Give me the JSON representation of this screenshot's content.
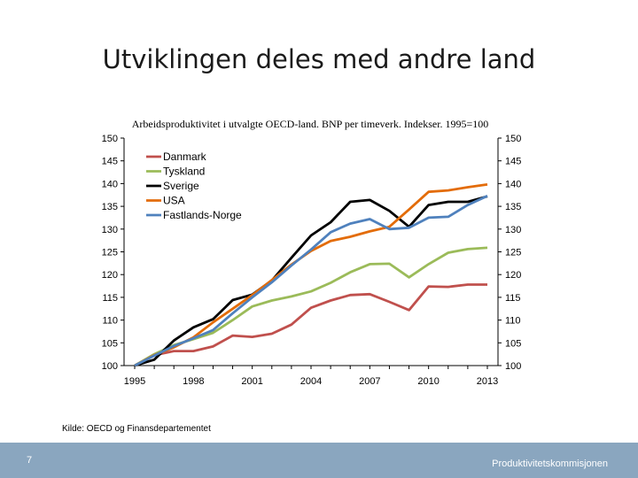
{
  "slide": {
    "title": "Utviklingen deles med andre land",
    "page_number": "7",
    "footer_brand": "Produktivitetskommisjonen"
  },
  "source_note": "Kilde: OECD og Finansdepartementet",
  "chart_data": {
    "type": "line",
    "title": "Arbeidsproduktivitet i utvalgte OECD-land. BNP per timeverk. Indekser. 1995=100",
    "xlabel": "",
    "ylabel": "",
    "x": [
      1995,
      1996,
      1997,
      1998,
      1999,
      2000,
      2001,
      2002,
      2003,
      2004,
      2005,
      2006,
      2007,
      2008,
      2009,
      2010,
      2011,
      2012,
      2013
    ],
    "x_ticks": [
      "1995",
      "1998",
      "2001",
      "2004",
      "2007",
      "2010",
      "2013"
    ],
    "y_ticks": [
      "100",
      "105",
      "110",
      "115",
      "120",
      "125",
      "130",
      "135",
      "140",
      "145",
      "150"
    ],
    "ylim": [
      100,
      150
    ],
    "grid": false,
    "legend_position": "top-left",
    "series": [
      {
        "name": "Danmark",
        "color": "#c0504d",
        "values": [
          100,
          102.3,
          103.2,
          103.2,
          104.2,
          106.6,
          106.3,
          107,
          109,
          112.7,
          114.3,
          115.5,
          115.7,
          114,
          112.2,
          117.4,
          117.3,
          117.8,
          117.8
        ]
      },
      {
        "name": "Tyskland",
        "color": "#9bbb59",
        "values": [
          100,
          102.5,
          104.5,
          105.8,
          107.2,
          110,
          113,
          114.3,
          115.2,
          116.3,
          118.2,
          120.5,
          122.3,
          122.4,
          119.4,
          122.3,
          124.8,
          125.6,
          125.9
        ]
      },
      {
        "name": "Sverige",
        "color": "#000000",
        "values": [
          100,
          101.3,
          105.5,
          108.4,
          110.2,
          114.4,
          115.6,
          118.7,
          123.7,
          128.6,
          131.5,
          136,
          136.4,
          134,
          130.5,
          135.3,
          136,
          136,
          137.2
        ]
      },
      {
        "name": "USA",
        "color": "#e36c09",
        "values": [
          100,
          102.3,
          104,
          106.2,
          109.5,
          112.5,
          115.5,
          118.8,
          122.2,
          125.2,
          127.4,
          128.3,
          129.5,
          130.5,
          134.3,
          138.2,
          138.5,
          139.2,
          139.8
        ]
      },
      {
        "name": "Fastlands-Norge",
        "color": "#4f81bd",
        "values": [
          100,
          102.2,
          104.3,
          106,
          107.8,
          111.5,
          115,
          118.3,
          122,
          125.5,
          129.3,
          131.2,
          132.2,
          130,
          130.3,
          132.5,
          132.7,
          135.3,
          137.3
        ]
      }
    ]
  }
}
